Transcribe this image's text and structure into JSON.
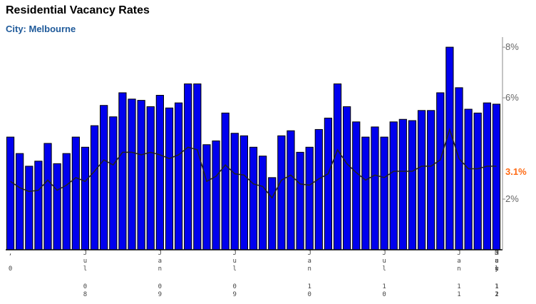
{
  "chart_data": {
    "type": "bar",
    "title": "Residential Vacancy Rates",
    "subtitle": "City: Melbourne",
    "y_unit": "%",
    "ylim": [
      0,
      8.2
    ],
    "y_ticks": [
      {
        "value": 2,
        "label": "2%"
      },
      {
        "value": 6,
        "label": "6%"
      },
      {
        "value": 8,
        "label": "8%"
      }
    ],
    "x_ticks": [
      {
        "index": 0,
        "chars": [
          ",",
          "",
          "0"
        ]
      },
      {
        "index": 8,
        "chars": [
          "J",
          "u",
          "l",
          "",
          "0",
          "8"
        ]
      },
      {
        "index": 16,
        "chars": [
          "J",
          "a",
          "n",
          "",
          "0",
          "9"
        ]
      },
      {
        "index": 24,
        "chars": [
          "J",
          "u",
          "l",
          "",
          "0",
          "9"
        ]
      },
      {
        "index": 32,
        "chars": [
          "J",
          "a",
          "n",
          "",
          "1",
          "0"
        ]
      },
      {
        "index": 40,
        "chars": [
          "J",
          "u",
          "l",
          "",
          "1",
          "0"
        ]
      },
      {
        "index": 48,
        "chars": [
          "J",
          "a",
          "n",
          "",
          "1",
          "1"
        ]
      },
      {
        "index": 56,
        "chars": [
          "J",
          "u",
          "l",
          "",
          "1",
          "1"
        ]
      },
      {
        "index": 64,
        "chars": [
          "J",
          "a",
          "n",
          "",
          "1",
          "2"
        ]
      },
      {
        "index": 68,
        "chars": [
          "M",
          "a",
          "y",
          "",
          "1",
          "2"
        ]
      }
    ],
    "series": [
      {
        "kind": "bar",
        "color": "#0000ee",
        "values": [
          4.45,
          3.8,
          3.3,
          3.5,
          4.2,
          3.4,
          3.8,
          4.45,
          4.05,
          4.9,
          5.7,
          5.25,
          6.2,
          5.95,
          5.9,
          5.65,
          6.1,
          5.6,
          5.8,
          6.55,
          6.55,
          4.15,
          4.3,
          5.4,
          4.6,
          4.5,
          4.05,
          3.7,
          2.85,
          4.5,
          4.7,
          3.85,
          4.05,
          4.75,
          5.2,
          6.55,
          5.65,
          5.05,
          4.45,
          4.85,
          4.45,
          5.05,
          5.15,
          5.1,
          5.5,
          5.5,
          6.2,
          8.0,
          6.4,
          5.55,
          5.4,
          5.8,
          5.75
        ]
      },
      {
        "kind": "line",
        "color": "#222222",
        "values": [
          2.7,
          2.45,
          2.3,
          2.35,
          2.75,
          2.35,
          2.55,
          2.85,
          2.7,
          3.1,
          3.55,
          3.35,
          3.85,
          3.85,
          3.75,
          3.85,
          3.75,
          3.6,
          3.75,
          4.05,
          3.95,
          2.7,
          2.9,
          3.35,
          3.0,
          2.95,
          2.6,
          2.5,
          2.05,
          2.75,
          2.95,
          2.6,
          2.55,
          2.8,
          3.0,
          3.95,
          3.4,
          3.05,
          2.75,
          2.95,
          2.85,
          3.1,
          3.1,
          3.1,
          3.3,
          3.3,
          3.55,
          4.75,
          3.6,
          3.2,
          3.2,
          3.3,
          3.3
        ]
      }
    ],
    "value_label": {
      "text": "3.1%",
      "value": 3.1,
      "color": "#ff6a13"
    }
  }
}
